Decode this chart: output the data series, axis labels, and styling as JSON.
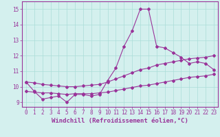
{
  "xlabel": "Windchill (Refroidissement éolien,°C)",
  "background_color": "#d4f0ee",
  "line_color": "#993399",
  "grid_color": "#aaddd8",
  "axis_color": "#993399",
  "xlim": [
    -0.5,
    23.5
  ],
  "ylim": [
    8.7,
    15.5
  ],
  "xticks": [
    0,
    1,
    2,
    3,
    4,
    5,
    6,
    7,
    8,
    9,
    10,
    11,
    12,
    13,
    14,
    15,
    16,
    17,
    18,
    19,
    20,
    21,
    22,
    23
  ],
  "yticks": [
    9,
    10,
    11,
    12,
    13,
    14,
    15
  ],
  "series": [
    [
      10.3,
      9.7,
      9.2,
      9.3,
      9.4,
      9.0,
      9.5,
      9.5,
      9.4,
      9.5,
      10.4,
      11.2,
      12.6,
      13.6,
      15.0,
      15.0,
      12.6,
      12.5,
      12.2,
      11.9,
      11.5,
      11.6,
      11.5,
      11.1
    ],
    [
      9.7,
      9.65,
      9.6,
      9.6,
      9.55,
      9.5,
      9.55,
      9.55,
      9.55,
      9.6,
      9.65,
      9.75,
      9.85,
      9.95,
      10.05,
      10.1,
      10.2,
      10.3,
      10.4,
      10.5,
      10.6,
      10.65,
      10.7,
      10.8
    ],
    [
      10.3,
      10.25,
      10.15,
      10.1,
      10.05,
      10.0,
      10.0,
      10.05,
      10.1,
      10.15,
      10.3,
      10.5,
      10.7,
      10.9,
      11.1,
      11.2,
      11.4,
      11.5,
      11.6,
      11.7,
      11.8,
      11.85,
      11.9,
      12.0
    ]
  ],
  "tick_fontsize": 5.5,
  "label_fontsize": 6.5,
  "marker": "D",
  "markersize": 2.0,
  "linewidth": 0.8
}
